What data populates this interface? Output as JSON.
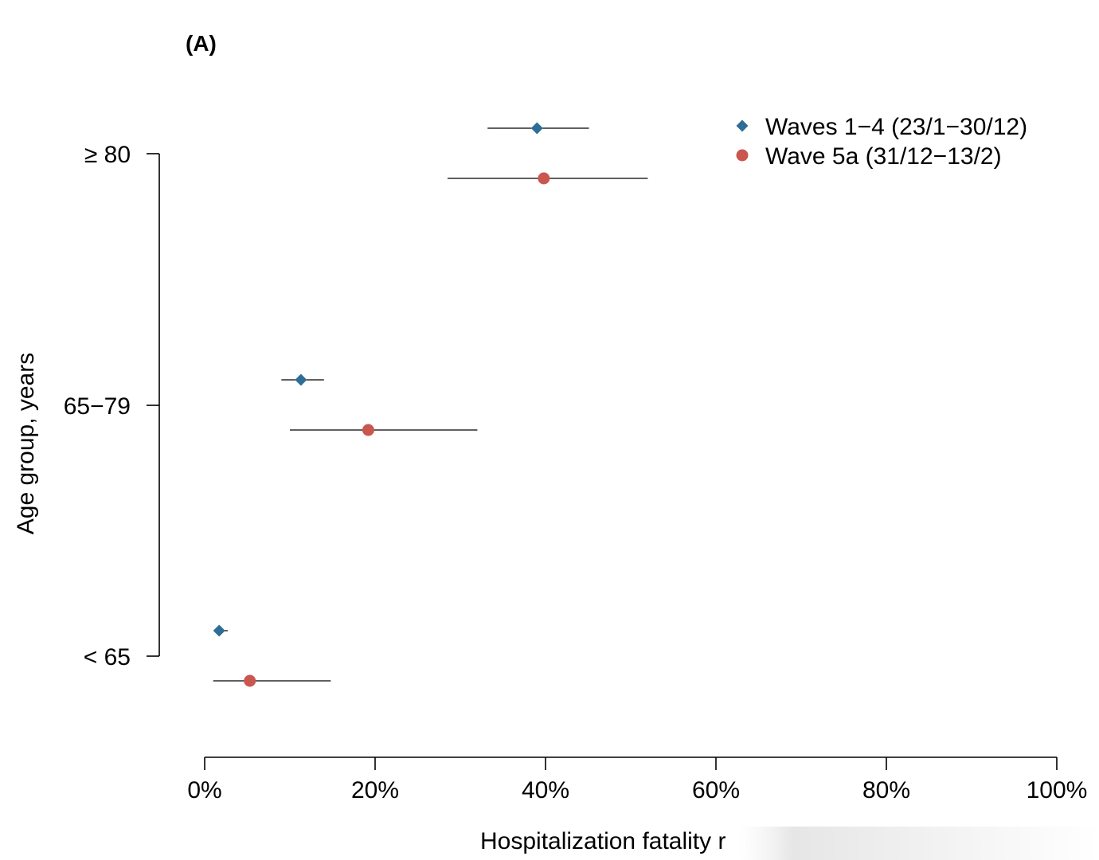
{
  "chart_data": {
    "type": "scatter",
    "panel_label": "(A)",
    "xlabel": "Hospitalization fatality r",
    "ylabel": "Age group, years",
    "xlim": [
      0,
      100
    ],
    "x_ticks": [
      0,
      20,
      40,
      60,
      80,
      100
    ],
    "x_tick_labels": [
      "0%",
      "20%",
      "40%",
      "60%",
      "80%",
      "100%"
    ],
    "categories": [
      "< 65",
      "65−79",
      "≥ 80"
    ],
    "legend_position": "top-right",
    "grid": false,
    "series": [
      {
        "name": "Waves 1−4 (23/1−30/12)",
        "marker": "diamond",
        "color": "#2e6e96",
        "values": [
          1.7,
          11.3,
          39.0
        ],
        "lower": [
          1.4,
          9.0,
          33.2
        ],
        "upper": [
          2.7,
          14.0,
          45.1
        ]
      },
      {
        "name": "Wave 5a (31/12−13/2)",
        "marker": "circle",
        "color": "#c9574f",
        "values": [
          5.3,
          19.2,
          39.8
        ],
        "lower": [
          1.0,
          10.0,
          28.5
        ],
        "upper": [
          14.8,
          32.0,
          52.0
        ]
      }
    ]
  }
}
